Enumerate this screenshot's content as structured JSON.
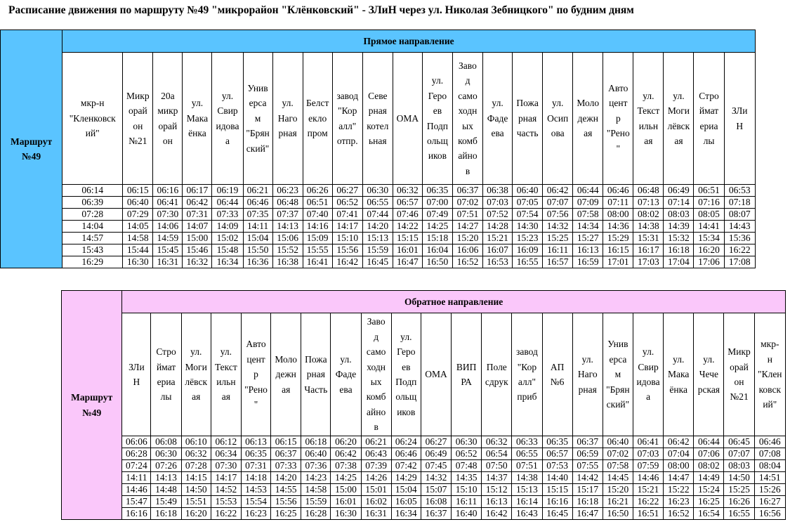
{
  "title": "Расписание движения по маршруту №49 \"микрорайон \"Клёнковский\" - ЗЛиН через ул. Николая Зебницкого\" по будним дням",
  "colors": {
    "forward_bg": "#5ac4ff",
    "backward_bg": "#fac7fa"
  },
  "forward": {
    "route_label": "Маршрут\n№49",
    "direction": "Прямое направление",
    "stops": [
      "мкр-н\n\"Кленковск\nий\"",
      "Микр\nорай\nон\n№21",
      "20а\nмикр\nорай\nон",
      "ул.\nМака\nёнка",
      "ул.\nСвир\nидова\nа",
      "Унив\nерса\nм\n\"Брян\nский\"",
      "ул.\nНаго\nрная",
      "Белст\nекло\nпром",
      "завод\n\"Кор\nалл\"\nотпр.",
      "Севе\nрная\nкотел\nьная",
      "ОМА",
      "ул.\nГеро\nев\nПодп\nольщ\nиков",
      "Завo\nд\nсамо\nходн\nых\nкомб\nайно\nв",
      "ул.\nФаде\nева",
      "Пожа\nрная\nчасть",
      "ул.\nОсип\nова",
      "Моло\nдежн\nая",
      "Авто\nцент\nр\n\"Рено\n\"",
      "ул.\nТекст\nильн\nая",
      "ул.\nМоги\nлёвск\nая",
      "Стро\nймат\nериа\nлы",
      "ЗЛи\nН"
    ],
    "trips": [
      [
        "06:14",
        "06:15",
        "06:16",
        "06:17",
        "06:19",
        "06:21",
        "06:23",
        "06:26",
        "06:27",
        "06:30",
        "06:32",
        "06:35",
        "06:37",
        "06:38",
        "06:40",
        "06:42",
        "06:44",
        "06:46",
        "06:48",
        "06:49",
        "06:51",
        "06:53"
      ],
      [
        "06:39",
        "06:40",
        "06:41",
        "06:42",
        "06:44",
        "06:46",
        "06:48",
        "06:51",
        "06:52",
        "06:55",
        "06:57",
        "07:00",
        "07:02",
        "07:03",
        "07:05",
        "07:07",
        "07:09",
        "07:11",
        "07:13",
        "07:14",
        "07:16",
        "07:18"
      ],
      [
        "07:28",
        "07:29",
        "07:30",
        "07:31",
        "07:33",
        "07:35",
        "07:37",
        "07:40",
        "07:41",
        "07:44",
        "07:46",
        "07:49",
        "07:51",
        "07:52",
        "07:54",
        "07:56",
        "07:58",
        "08:00",
        "08:02",
        "08:03",
        "08:05",
        "08:07"
      ],
      [
        "14:04",
        "14:05",
        "14:06",
        "14:07",
        "14:09",
        "14:11",
        "14:13",
        "14:16",
        "14:17",
        "14:20",
        "14:22",
        "14:25",
        "14:27",
        "14:28",
        "14:30",
        "14:32",
        "14:34",
        "14:36",
        "14:38",
        "14:39",
        "14:41",
        "14:43"
      ],
      [
        "14:57",
        "14:58",
        "14:59",
        "15:00",
        "15:02",
        "15:04",
        "15:06",
        "15:09",
        "15:10",
        "15:13",
        "15:15",
        "15:18",
        "15:20",
        "15:21",
        "15:23",
        "15:25",
        "15:27",
        "15:29",
        "15:31",
        "15:32",
        "15:34",
        "15:36"
      ],
      [
        "15:43",
        "15:44",
        "15:45",
        "15:46",
        "15:48",
        "15:50",
        "15:52",
        "15:55",
        "15:56",
        "15:59",
        "16:01",
        "16:04",
        "16:06",
        "16:07",
        "16:09",
        "16:11",
        "16:13",
        "16:15",
        "16:17",
        "16:18",
        "16:20",
        "16:22"
      ],
      [
        "16:29",
        "16:30",
        "16:31",
        "16:32",
        "16:34",
        "16:36",
        "16:38",
        "16:41",
        "16:42",
        "16:45",
        "16:47",
        "16:50",
        "16:52",
        "16:53",
        "16:55",
        "16:57",
        "16:59",
        "17:01",
        "17:03",
        "17:04",
        "17:06",
        "17:08"
      ]
    ]
  },
  "backward": {
    "route_label": "Маршрут\n№49",
    "direction": "Обратное направление",
    "stops": [
      "ЗЛи\nН",
      "Стро\nймат\nериа\nлы",
      "ул.\nМоги\nлёвск\nая",
      "ул.\nТекст\nильн\nая",
      "Авто\nцент\nр\n\"Рено\n\"",
      "Моло\nдежн\nая",
      "Пожа\nрная\nЧасть",
      "ул.\nФаде\nева",
      "Завo\nд\nсамо\nходн\nых\nкомб\nайно\nв",
      "ул.\nГеро\nев\nПодп\nольщ\nиков",
      "ОМА",
      "ВИП\nРА",
      "Поле\nсдрук",
      "завод\n\"Кор\nалл\"\nприб",
      "АП\n№6",
      "ул.\nНаго\nрная",
      "Унив\nерса\nм\n\"Брян\nский\"",
      "ул.\nСвир\nидова\nа",
      "ул.\nМака\nёнка",
      "ул.\nЧече\nрская",
      "Микр\nорай\nон\n№21",
      "мкр-\nн\n\"Клен\nковск\nий\""
    ],
    "trips": [
      [
        "06:06",
        "06:08",
        "06:10",
        "06:12",
        "06:13",
        "06:15",
        "06:18",
        "06:20",
        "06:21",
        "06:24",
        "06:27",
        "06:30",
        "06:32",
        "06:33",
        "06:35",
        "06:37",
        "06:40",
        "06:41",
        "06:42",
        "06:44",
        "06:45",
        "06:46"
      ],
      [
        "06:28",
        "06:30",
        "06:32",
        "06:34",
        "06:35",
        "06:37",
        "06:40",
        "06:42",
        "06:43",
        "06:46",
        "06:49",
        "06:52",
        "06:54",
        "06:55",
        "06:57",
        "06:59",
        "07:02",
        "07:03",
        "07:04",
        "07:06",
        "07:07",
        "07:08"
      ],
      [
        "07:24",
        "07:26",
        "07:28",
        "07:30",
        "07:31",
        "07:33",
        "07:36",
        "07:38",
        "07:39",
        "07:42",
        "07:45",
        "07:48",
        "07:50",
        "07:51",
        "07:53",
        "07:55",
        "07:58",
        "07:59",
        "08:00",
        "08:02",
        "08:03",
        "08:04"
      ],
      [
        "14:11",
        "14:13",
        "14:15",
        "14:17",
        "14:18",
        "14:20",
        "14:23",
        "14:25",
        "14:26",
        "14:29",
        "14:32",
        "14:35",
        "14:37",
        "14:38",
        "14:40",
        "14:42",
        "14:45",
        "14:46",
        "14:47",
        "14:49",
        "14:50",
        "14:51"
      ],
      [
        "14:46",
        "14:48",
        "14:50",
        "14:52",
        "14:53",
        "14:55",
        "14:58",
        "15:00",
        "15:01",
        "15:04",
        "15:07",
        "15:10",
        "15:12",
        "15:13",
        "15:15",
        "15:17",
        "15:20",
        "15:21",
        "15:22",
        "15:24",
        "15:25",
        "15:26"
      ],
      [
        "15:47",
        "15:49",
        "15:51",
        "15:53",
        "15:54",
        "15:56",
        "15:59",
        "16:01",
        "16:02",
        "16:05",
        "16:08",
        "16:11",
        "16:13",
        "16:14",
        "16:16",
        "16:18",
        "16:21",
        "16:22",
        "16:23",
        "16:25",
        "16:26",
        "16:27"
      ],
      [
        "16:16",
        "16:18",
        "16:20",
        "16:22",
        "16:23",
        "16:25",
        "16:28",
        "16:30",
        "16:31",
        "16:34",
        "16:37",
        "16:40",
        "16:42",
        "16:43",
        "16:45",
        "16:47",
        "16:50",
        "16:51",
        "16:52",
        "16:54",
        "16:55",
        "16:56"
      ]
    ]
  }
}
